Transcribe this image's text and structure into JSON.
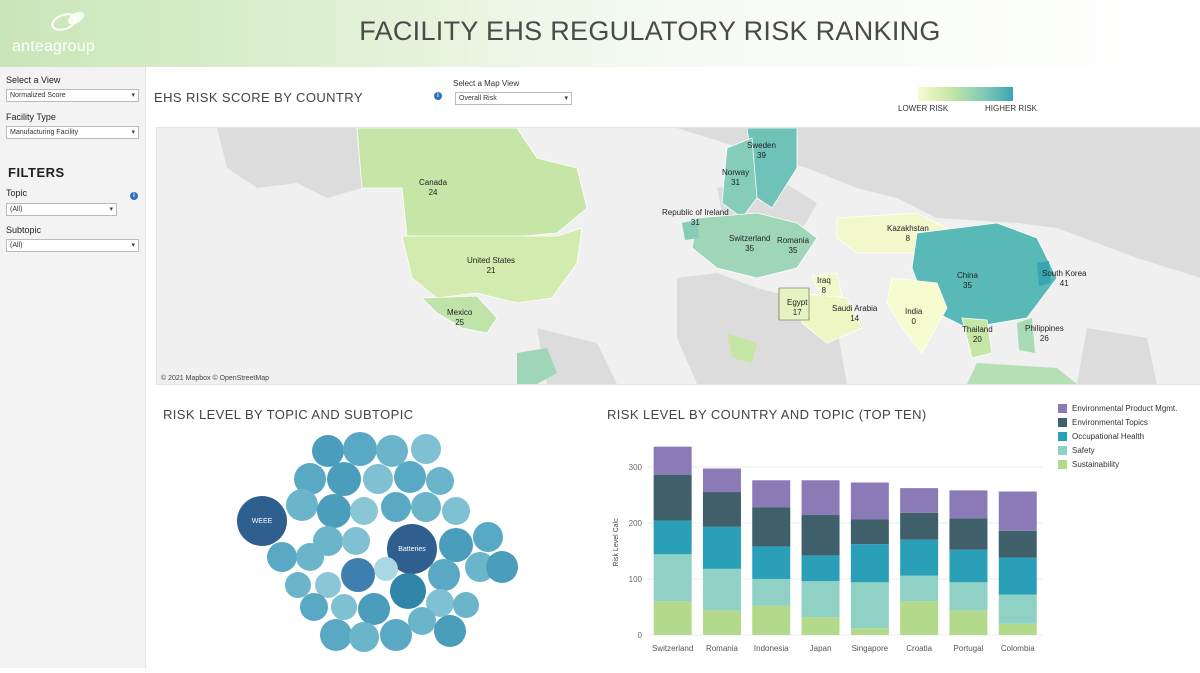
{
  "header": {
    "logo_text": "anteagroup",
    "title": "FACILITY EHS REGULATORY RISK RANKING"
  },
  "sidebar": {
    "view_label": "Select a View",
    "view_value": "Normalized Score",
    "facility_label": "Facility Type",
    "facility_value": "Manufacturing Facility",
    "filters_title": "FILTERS",
    "topic_label": "Topic",
    "topic_value": "(All)",
    "subtopic_label": "Subtopic",
    "subtopic_value": "(All)"
  },
  "map_section": {
    "title": "EHS RISK SCORE BY COUNTRY",
    "map_view_label": "Select a Map View",
    "map_view_value": "Overall Risk",
    "legend_low": "LOWER RISK",
    "legend_high": "HIGHER RISK",
    "credit": "© 2021 Mapbox © OpenStreetMap",
    "countries": [
      {
        "name": "Canada",
        "score": "24"
      },
      {
        "name": "United States",
        "score": "21"
      },
      {
        "name": "Mexico",
        "score": "25"
      },
      {
        "name": "Sweden",
        "score": "39"
      },
      {
        "name": "Norway",
        "score": "31"
      },
      {
        "name": "Republic of Ireland",
        "score": "31"
      },
      {
        "name": "Switzerland",
        "score": "35"
      },
      {
        "name": "Romania",
        "score": "35"
      },
      {
        "name": "Kazakhstan",
        "score": "8"
      },
      {
        "name": "Iraq",
        "score": "8"
      },
      {
        "name": "Egypt",
        "score": "17"
      },
      {
        "name": "Saudi Arabia",
        "score": "14"
      },
      {
        "name": "China",
        "score": "35"
      },
      {
        "name": "South Korea",
        "score": "41"
      },
      {
        "name": "India",
        "score": "0"
      },
      {
        "name": "Thailand",
        "score": "20"
      },
      {
        "name": "Philippines",
        "score": "26"
      }
    ],
    "colors": {
      "low": "#f6fbd0",
      "mid": "#c6e6a8",
      "high": "#3aa5b2"
    }
  },
  "bubble_section": {
    "title": "RISK LEVEL BY TOPIC AND SUBTOPIC",
    "labels": [
      "WEEE",
      "Batteries"
    ]
  },
  "chart_section": {
    "title": "RISK LEVEL BY COUNTRY AND TOPIC (TOP TEN)"
  },
  "chart_data": {
    "type": "bar",
    "stacked": true,
    "categories": [
      "Switzerland",
      "Romania",
      "Indonesia",
      "Japan",
      "Singapore",
      "Croatia",
      "Portugal",
      "Colombia"
    ],
    "ylabel": "Risk Level Calc",
    "ylim": [
      0,
      330
    ],
    "yticks": [
      0,
      100,
      200,
      300
    ],
    "legend_position": "right",
    "series": [
      {
        "name": "Sustainability",
        "color": "#b3d98a",
        "values": [
          60,
          44,
          52,
          32,
          12,
          60,
          44,
          20
        ]
      },
      {
        "name": "Safety",
        "color": "#8fd1c4",
        "values": [
          84,
          74,
          48,
          64,
          82,
          46,
          50,
          52
        ]
      },
      {
        "name": "Occupational Health",
        "color": "#2aa0b8",
        "values": [
          60,
          75,
          58,
          46,
          68,
          64,
          58,
          66
        ]
      },
      {
        "name": "Environmental Topics",
        "color": "#3f5f6a",
        "values": [
          82,
          62,
          70,
          72,
          44,
          48,
          56,
          48
        ]
      },
      {
        "name": "Environmental Product Mgmt.",
        "color": "#8a7bb7",
        "values": [
          50,
          42,
          48,
          62,
          66,
          44,
          50,
          70
        ]
      }
    ],
    "legend_order": [
      "Environmental Product Mgmt.",
      "Environmental Topics",
      "Occupational Health",
      "Safety",
      "Sustainability"
    ]
  }
}
